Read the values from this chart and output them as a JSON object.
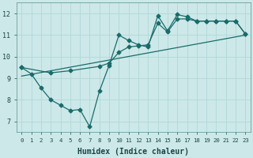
{
  "xlabel": "Humidex (Indice chaleur)",
  "bg_color": "#cde8e8",
  "line_color": "#1a6b6b",
  "grid_color": "#b0d8d8",
  "xlim": [
    -0.5,
    23.5
  ],
  "ylim": [
    6.5,
    12.5
  ],
  "xticks": [
    0,
    1,
    2,
    3,
    4,
    5,
    6,
    7,
    8,
    9,
    10,
    11,
    12,
    13,
    14,
    15,
    16,
    17,
    18,
    19,
    20,
    21,
    22,
    23
  ],
  "yticks": [
    7,
    8,
    9,
    10,
    11,
    12
  ],
  "series1": [
    [
      0,
      9.5
    ],
    [
      1,
      9.2
    ],
    [
      2,
      8.55
    ],
    [
      3,
      8.0
    ],
    [
      4,
      7.75
    ],
    [
      5,
      7.5
    ],
    [
      6,
      7.55
    ],
    [
      7,
      6.75
    ],
    [
      8,
      8.4
    ],
    [
      9,
      9.6
    ],
    [
      10,
      11.0
    ],
    [
      11,
      10.75
    ],
    [
      12,
      10.55
    ],
    [
      13,
      10.45
    ],
    [
      14,
      11.9
    ],
    [
      15,
      11.2
    ],
    [
      16,
      11.95
    ],
    [
      17,
      11.85
    ],
    [
      18,
      11.65
    ],
    [
      19,
      11.65
    ],
    [
      20,
      11.65
    ],
    [
      21,
      11.65
    ],
    [
      22,
      11.65
    ],
    [
      23,
      11.05
    ]
  ],
  "series2": [
    [
      0,
      9.5
    ],
    [
      3,
      9.25
    ],
    [
      5,
      9.35
    ],
    [
      8,
      9.55
    ],
    [
      9,
      9.7
    ],
    [
      10,
      10.2
    ],
    [
      11,
      10.45
    ],
    [
      12,
      10.5
    ],
    [
      13,
      10.55
    ],
    [
      14,
      11.55
    ],
    [
      15,
      11.15
    ],
    [
      16,
      11.75
    ],
    [
      17,
      11.75
    ],
    [
      18,
      11.65
    ],
    [
      19,
      11.65
    ],
    [
      20,
      11.65
    ],
    [
      21,
      11.65
    ],
    [
      22,
      11.65
    ],
    [
      23,
      11.05
    ]
  ],
  "trend_line": [
    [
      0,
      9.1
    ],
    [
      23,
      11.0
    ]
  ],
  "marker_size": 2.5,
  "linewidth": 0.9
}
